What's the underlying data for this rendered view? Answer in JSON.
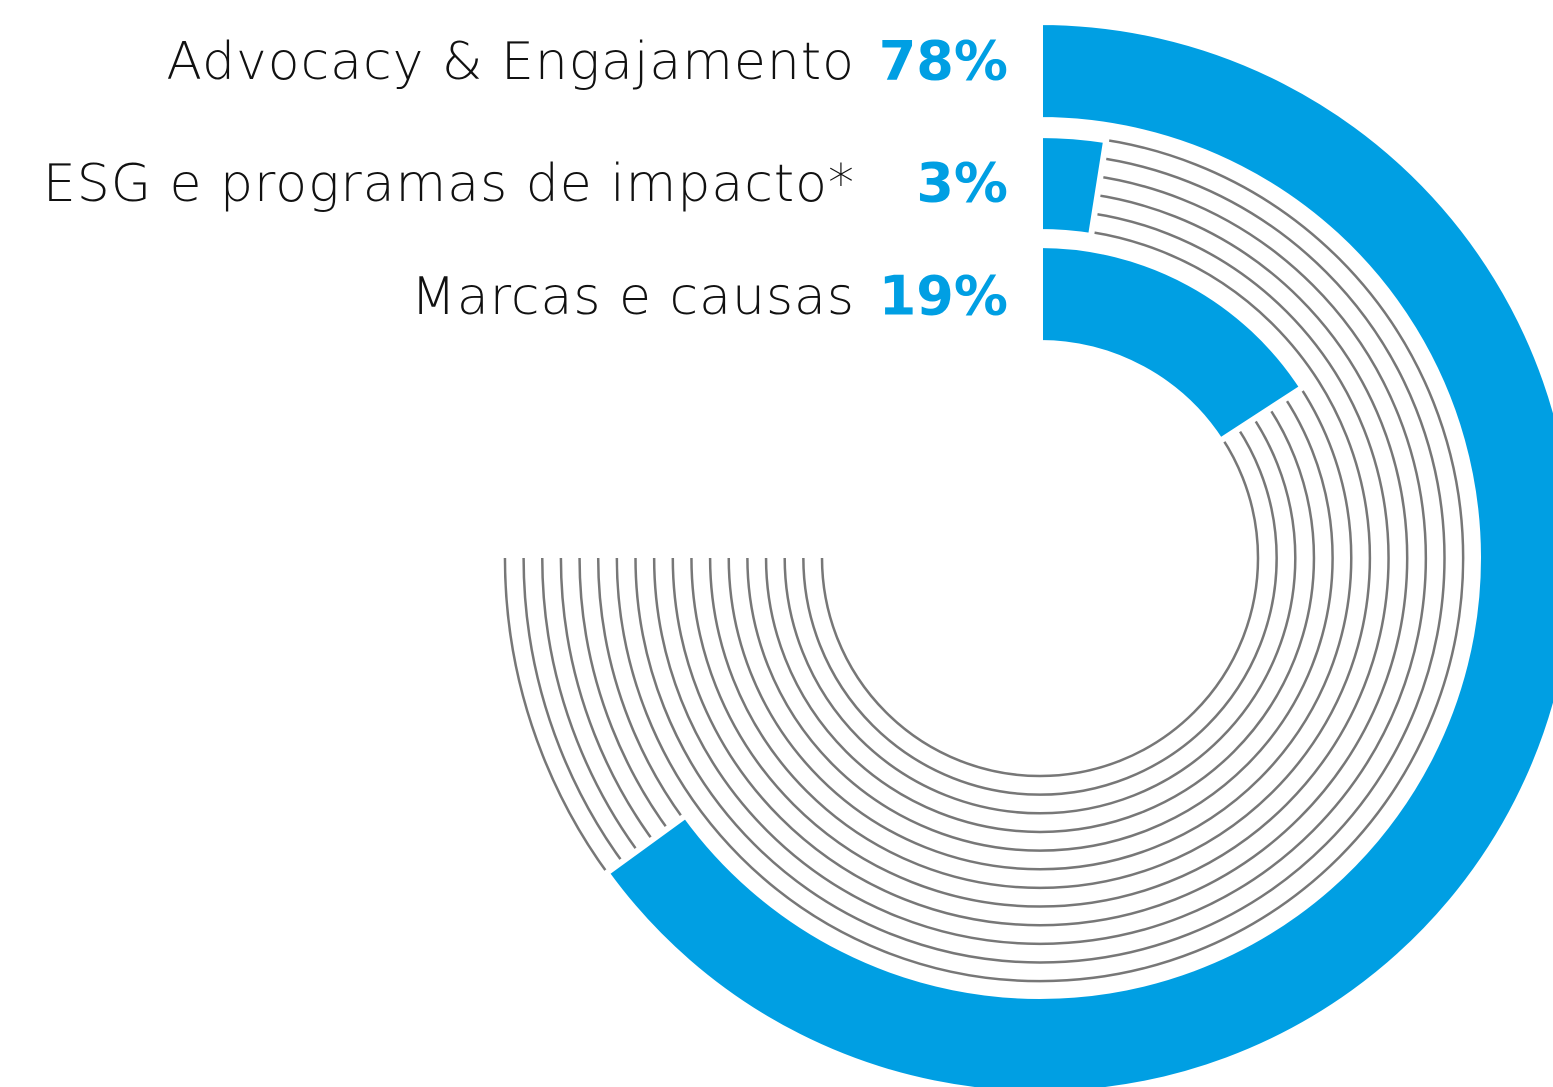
{
  "chart_data": {
    "type": "radial_bar",
    "categories": [
      "Advocacy & Engajamento",
      "ESG e programas de impacto*",
      "Marcas e causas"
    ],
    "values": [
      78,
      3,
      19
    ],
    "value_labels": [
      "78%",
      "3%",
      "19%"
    ],
    "ylim": [
      0,
      100
    ],
    "color": "#009fe3"
  }
}
